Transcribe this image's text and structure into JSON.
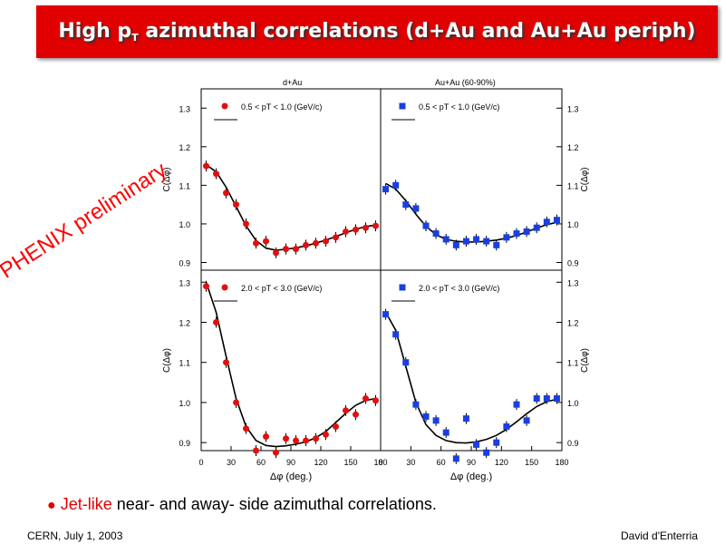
{
  "slide": {
    "title_main": "High p",
    "title_sub": "T",
    "title_rest": " azimuthal correlations (d+Au and Au+Au periph)",
    "watermark": "PHENIX preliminary",
    "bullet_highlight": "Jet-like",
    "bullet_rest": " near- and away- side azimuthal correlations.",
    "footer_left": "CERN, July 1, 2003",
    "footer_right": "David d'Enterria",
    "colors": {
      "title_bar": "#e00000",
      "dAu_marker": "#e01010",
      "AuAu_marker": "#1a3fe0",
      "watermark": "#ff0000"
    }
  },
  "chart_data": [
    {
      "type": "scatter",
      "title": "d+Au",
      "label": "0.5 < pT < 1.0 (GeV/c)",
      "ylabel": "C(Δφ)",
      "ylim": [
        0.88,
        1.35
      ],
      "yticks": [
        0.9,
        1.0,
        1.1,
        1.2,
        1.3
      ],
      "xlim": [
        0,
        180
      ],
      "marker": "circle",
      "x": [
        5,
        15,
        25,
        35,
        45,
        55,
        65,
        75,
        85,
        95,
        105,
        115,
        125,
        135,
        145,
        155,
        165,
        175
      ],
      "y": [
        1.15,
        1.13,
        1.08,
        1.05,
        1.0,
        0.95,
        0.955,
        0.925,
        0.935,
        0.935,
        0.945,
        0.95,
        0.955,
        0.965,
        0.98,
        0.985,
        0.99,
        0.995
      ],
      "fit": [
        1.153,
        1.135,
        1.095,
        1.045,
        0.995,
        0.957,
        0.937,
        0.932,
        0.934,
        0.938,
        0.943,
        0.95,
        0.958,
        0.967,
        0.977,
        0.986,
        0.993,
        0.997
      ]
    },
    {
      "type": "scatter",
      "title": "Au+Au (60-90%)",
      "label": "0.5 < pT < 1.0 (GeV/c)",
      "ylabel": "C(Δφ)",
      "ylim": [
        0.88,
        1.35
      ],
      "yticks": [
        0.9,
        1.0,
        1.1,
        1.2,
        1.3
      ],
      "xlim": [
        0,
        180
      ],
      "marker": "square",
      "x": [
        5,
        15,
        25,
        35,
        45,
        55,
        65,
        75,
        85,
        95,
        105,
        115,
        125,
        135,
        145,
        155,
        165,
        175
      ],
      "y": [
        1.09,
        1.1,
        1.05,
        1.04,
        0.995,
        0.975,
        0.96,
        0.945,
        0.955,
        0.96,
        0.955,
        0.945,
        0.965,
        0.975,
        0.98,
        0.99,
        1.005,
        1.01
      ],
      "fit": [
        1.105,
        1.09,
        1.06,
        1.025,
        0.994,
        0.972,
        0.96,
        0.955,
        0.953,
        0.953,
        0.955,
        0.958,
        0.963,
        0.97,
        0.979,
        0.989,
        0.998,
        1.004
      ]
    },
    {
      "type": "scatter",
      "label": "2.0 < pT < 3.0 (GeV/c)",
      "ylabel": "C(Δφ)",
      "ylim": [
        0.88,
        1.33
      ],
      "yticks": [
        0.9,
        1.0,
        1.1,
        1.2,
        1.3
      ],
      "xlim": [
        0,
        180
      ],
      "xticks": [
        0,
        30,
        60,
        90,
        120,
        150,
        180
      ],
      "xlabel": "Δφ (deg.)",
      "marker": "circle",
      "x": [
        5,
        15,
        25,
        35,
        45,
        55,
        65,
        75,
        85,
        95,
        105,
        115,
        125,
        135,
        145,
        155,
        165,
        175
      ],
      "y": [
        1.29,
        1.2,
        1.1,
        1.0,
        0.935,
        0.88,
        0.915,
        0.875,
        0.91,
        0.905,
        0.905,
        0.91,
        0.92,
        0.94,
        0.98,
        0.97,
        1.01,
        1.005
      ],
      "fit": [
        1.3,
        1.225,
        1.115,
        1.01,
        0.94,
        0.905,
        0.893,
        0.89,
        0.892,
        0.896,
        0.902,
        0.912,
        0.928,
        0.95,
        0.973,
        0.993,
        1.005,
        1.01
      ]
    },
    {
      "type": "scatter",
      "label": "2.0 < pT < 3.0 (GeV/c)",
      "ylabel": "C(Δφ)",
      "ylim": [
        0.88,
        1.33
      ],
      "yticks": [
        0.9,
        1.0,
        1.1,
        1.2,
        1.3
      ],
      "xlim": [
        0,
        180
      ],
      "xticks": [
        0,
        30,
        60,
        90,
        120,
        150,
        180
      ],
      "xlabel": "Δφ (deg.)",
      "marker": "square",
      "x": [
        5,
        15,
        25,
        35,
        45,
        55,
        65,
        75,
        85,
        95,
        105,
        115,
        125,
        135,
        145,
        155,
        165,
        175
      ],
      "y": [
        1.22,
        1.17,
        1.1,
        0.995,
        0.965,
        0.955,
        0.925,
        0.86,
        0.96,
        0.895,
        0.875,
        0.9,
        0.94,
        0.995,
        0.955,
        1.01,
        1.01,
        1.01
      ],
      "fit": [
        1.225,
        1.18,
        1.09,
        1.0,
        0.945,
        0.918,
        0.905,
        0.9,
        0.899,
        0.902,
        0.908,
        0.918,
        0.933,
        0.952,
        0.972,
        0.99,
        1.002,
        1.008
      ]
    }
  ]
}
